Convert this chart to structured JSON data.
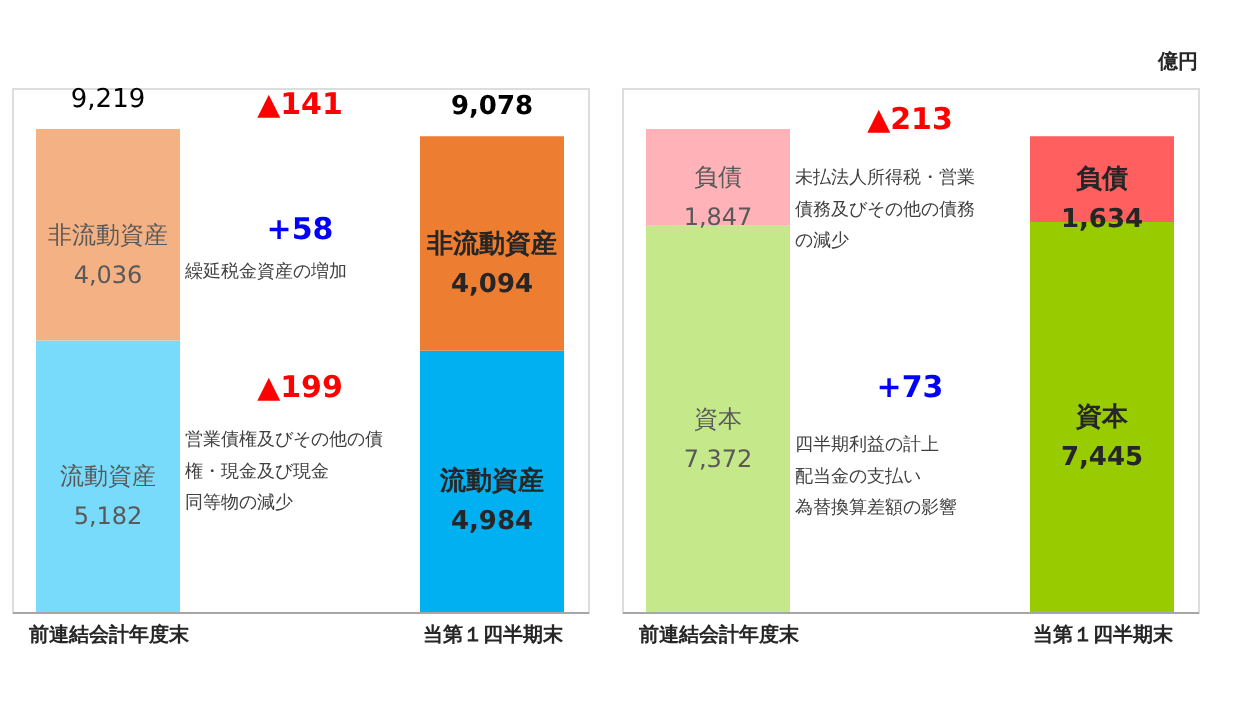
{
  "chart_data": [
    {
      "type": "bar",
      "stacked": true,
      "categories": [
        "前連結会計年度末",
        "当第１四半期末"
      ],
      "series": [
        {
          "name": "流動資産",
          "colors": [
            "#79dbfb",
            "#00b0f0"
          ],
          "values": [
            5182,
            4984
          ],
          "value_labels": [
            "5,182",
            "4,984"
          ]
        },
        {
          "name": "非流動資産",
          "colors": [
            "#f4b183",
            "#ed7d31"
          ],
          "values": [
            4036,
            4094
          ],
          "value_labels": [
            "4,036",
            "4,094"
          ]
        }
      ],
      "totals": [
        "9,219",
        "9,078"
      ],
      "annotations": [
        "▲141",
        "+58",
        "繰延税金資産の増加",
        "▲199",
        "営業債権及びその他の債",
        "権・現金及び現金",
        "同等物の減少"
      ]
    },
    {
      "type": "bar",
      "stacked": true,
      "categories": [
        "前連結会計年度末",
        "当第１四半期末"
      ],
      "ylabel": "億円",
      "series": [
        {
          "name": "資本",
          "colors": [
            "#c5e88a",
            "#99cc00"
          ],
          "values": [
            7372,
            7445
          ],
          "value_labels": [
            "7,372",
            "7,445"
          ]
        },
        {
          "name": "負債",
          "colors": [
            "#ffb3b8",
            "#ff5f5f"
          ],
          "values": [
            1847,
            1634
          ],
          "value_labels": [
            "1,847",
            "1,634"
          ]
        }
      ],
      "annotations": [
        "▲213",
        "未払法人所得税・営業",
        "債務及びその他の債務",
        "の減少",
        "+73",
        "四半期利益の計上",
        "配当金の支払い",
        "為替換算差額の影響"
      ]
    }
  ]
}
